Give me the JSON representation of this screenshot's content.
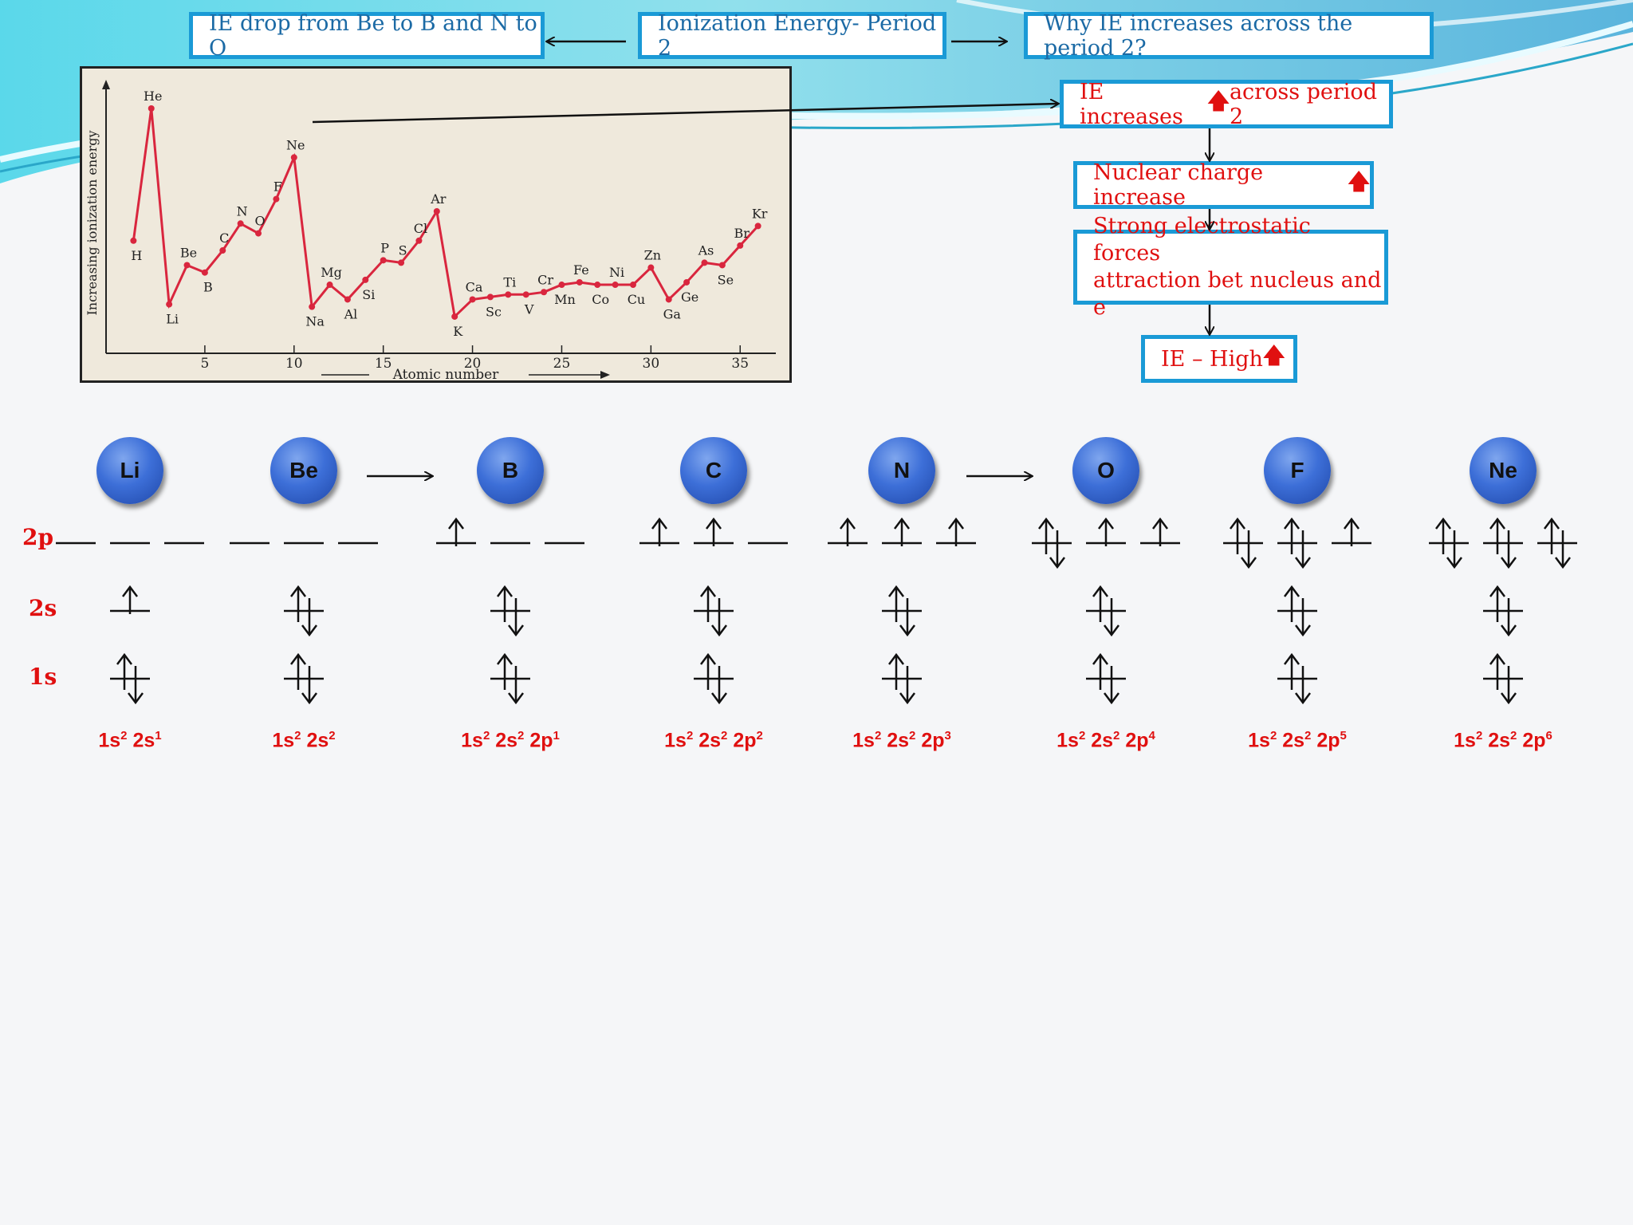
{
  "title_box": "Ionization Energy- Period 2",
  "left_box": "IE drop from Be to B and N to O",
  "right_box": "Why IE increases across the period 2?",
  "flow": {
    "step1": {
      "before": "IE increases ",
      "icon": "up-arrow-icon",
      "after": "across period 2"
    },
    "step2": {
      "text": "Nuclear charge increase ",
      "icon": "up-arrow-icon"
    },
    "step3": {
      "line1": "Strong electrostatic forces",
      "line2": "attraction bet nucleus and e"
    },
    "step4": {
      "text": "IE – High ",
      "icon": "up-arrow-icon"
    }
  },
  "up_glyph": "🡅",
  "colors": {
    "box_border": "#1a9ad6",
    "accent_red": "#e01010",
    "chart_line": "#d9263e",
    "atom": "#3d6fd8"
  },
  "chart_data": {
    "type": "line",
    "title": "",
    "xlabel": "Atomic number",
    "ylabel": "Increasing ionization energy",
    "xlim": [
      0,
      37
    ],
    "ylim": [
      0,
      100
    ],
    "xticks": [
      5,
      10,
      15,
      20,
      25,
      30,
      35
    ],
    "series": [
      {
        "points": [
          {
            "z": 1,
            "el": "H",
            "y": 46
          },
          {
            "z": 2,
            "el": "He",
            "y": 100
          },
          {
            "z": 3,
            "el": "Li",
            "y": 20
          },
          {
            "z": 4,
            "el": "Be",
            "y": 36
          },
          {
            "z": 5,
            "el": "B",
            "y": 33
          },
          {
            "z": 6,
            "el": "C",
            "y": 42
          },
          {
            "z": 7,
            "el": "N",
            "y": 53
          },
          {
            "z": 8,
            "el": "O",
            "y": 49
          },
          {
            "z": 9,
            "el": "F",
            "y": 63
          },
          {
            "z": 10,
            "el": "Ne",
            "y": 80
          },
          {
            "z": 11,
            "el": "Na",
            "y": 19
          },
          {
            "z": 12,
            "el": "Mg",
            "y": 28
          },
          {
            "z": 13,
            "el": "Al",
            "y": 22
          },
          {
            "z": 14,
            "el": "Si",
            "y": 30
          },
          {
            "z": 15,
            "el": "P",
            "y": 38
          },
          {
            "z": 16,
            "el": "S",
            "y": 37
          },
          {
            "z": 17,
            "el": "Cl",
            "y": 46
          },
          {
            "z": 18,
            "el": "Ar",
            "y": 58
          },
          {
            "z": 19,
            "el": "K",
            "y": 15
          },
          {
            "z": 20,
            "el": "Ca",
            "y": 22
          },
          {
            "z": 21,
            "el": "Sc",
            "y": 23
          },
          {
            "z": 22,
            "el": "Ti",
            "y": 24
          },
          {
            "z": 23,
            "el": "V",
            "y": 24
          },
          {
            "z": 24,
            "el": "Cr",
            "y": 25
          },
          {
            "z": 25,
            "el": "Mn",
            "y": 28
          },
          {
            "z": 26,
            "el": "Fe",
            "y": 29
          },
          {
            "z": 27,
            "el": "Co",
            "y": 28
          },
          {
            "z": 28,
            "el": "Ni",
            "y": 28
          },
          {
            "z": 29,
            "el": "Cu",
            "y": 28
          },
          {
            "z": 30,
            "el": "Zn",
            "y": 35
          },
          {
            "z": 31,
            "el": "Ga",
            "y": 22
          },
          {
            "z": 32,
            "el": "Ge",
            "y": 29
          },
          {
            "z": 33,
            "el": "As",
            "y": 37
          },
          {
            "z": 34,
            "el": "Se",
            "y": 36
          },
          {
            "z": 35,
            "el": "Br",
            "y": 44
          },
          {
            "z": 36,
            "el": "Kr",
            "y": 52
          }
        ]
      }
    ]
  },
  "levels": [
    "2p",
    "2s",
    "1s"
  ],
  "elements": [
    {
      "symbol": "Li",
      "config": [
        [
          "1s",
          "2"
        ],
        [
          "2s",
          "1"
        ]
      ],
      "p": [
        0,
        0,
        0
      ],
      "s2": 1,
      "s1": 2
    },
    {
      "symbol": "Be",
      "config": [
        [
          "1s",
          "2"
        ],
        [
          "2s",
          "2"
        ]
      ],
      "p": [
        0,
        0,
        0
      ],
      "s2": 2,
      "s1": 2
    },
    {
      "symbol": "B",
      "config": [
        [
          "1s",
          "2"
        ],
        [
          "2s",
          "2"
        ],
        [
          "2p",
          "1"
        ]
      ],
      "p": [
        1,
        0,
        0
      ],
      "s2": 2,
      "s1": 2
    },
    {
      "symbol": "C",
      "config": [
        [
          "1s",
          "2"
        ],
        [
          "2s",
          "2"
        ],
        [
          "2p",
          "2"
        ]
      ],
      "p": [
        1,
        1,
        0
      ],
      "s2": 2,
      "s1": 2
    },
    {
      "symbol": "N",
      "config": [
        [
          "1s",
          "2"
        ],
        [
          "2s",
          "2"
        ],
        [
          "2p",
          "3"
        ]
      ],
      "p": [
        1,
        1,
        1
      ],
      "s2": 2,
      "s1": 2
    },
    {
      "symbol": "O",
      "config": [
        [
          "1s",
          "2"
        ],
        [
          "2s",
          "2"
        ],
        [
          "2p",
          "4"
        ]
      ],
      "p": [
        2,
        1,
        1
      ],
      "s2": 2,
      "s1": 2
    },
    {
      "symbol": "F",
      "config": [
        [
          "1s",
          "2"
        ],
        [
          "2s",
          "2"
        ],
        [
          "2p",
          "5"
        ]
      ],
      "p": [
        2,
        2,
        1
      ],
      "s2": 2,
      "s1": 2
    },
    {
      "symbol": "Ne",
      "config": [
        [
          "1s",
          "2"
        ],
        [
          "2s",
          "2"
        ],
        [
          "2p",
          "6"
        ]
      ],
      "p": [
        2,
        2,
        2
      ],
      "s2": 2,
      "s1": 2
    }
  ]
}
